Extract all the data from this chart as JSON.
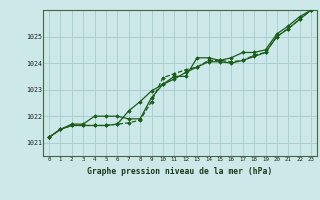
{
  "background_color": "#cce8e8",
  "grid_color": "#aad0d0",
  "line_color": "#1a5c1a",
  "xlabel": "Graphe pression niveau de la mer (hPa)",
  "xlim": [
    -0.5,
    23.5
  ],
  "ylim": [
    1020.5,
    1026.0
  ],
  "yticks": [
    1021,
    1022,
    1023,
    1024,
    1025
  ],
  "xticks": [
    0,
    1,
    2,
    3,
    4,
    5,
    6,
    7,
    8,
    9,
    10,
    11,
    12,
    13,
    14,
    15,
    16,
    17,
    18,
    19,
    20,
    21,
    22,
    23
  ],
  "series1": [
    1021.2,
    1021.5,
    1021.65,
    1021.65,
    1021.65,
    1021.65,
    1021.7,
    1021.75,
    1021.85,
    1022.55,
    1023.45,
    1023.6,
    1023.75,
    1023.85,
    1024.1,
    1024.1,
    1024.05,
    1024.1,
    1024.3,
    1024.4,
    1025.0,
    1025.3,
    1025.65,
    1026.0
  ],
  "series2": [
    1021.2,
    1021.5,
    1021.65,
    1021.65,
    1021.65,
    1021.65,
    1021.7,
    1022.2,
    1022.55,
    1022.95,
    1023.2,
    1023.4,
    1023.65,
    1023.85,
    1024.05,
    1024.05,
    1024.0,
    1024.1,
    1024.25,
    1024.4,
    1025.0,
    1025.3,
    1025.65,
    1026.0
  ],
  "series3": [
    1021.2,
    1021.5,
    1021.7,
    1021.7,
    1022.0,
    1022.0,
    1022.0,
    1021.9,
    1021.9,
    1022.7,
    1023.2,
    1023.5,
    1023.5,
    1024.2,
    1024.2,
    1024.1,
    1024.2,
    1024.4,
    1024.4,
    1024.5,
    1025.1,
    1025.4,
    1025.75,
    1026.0
  ]
}
